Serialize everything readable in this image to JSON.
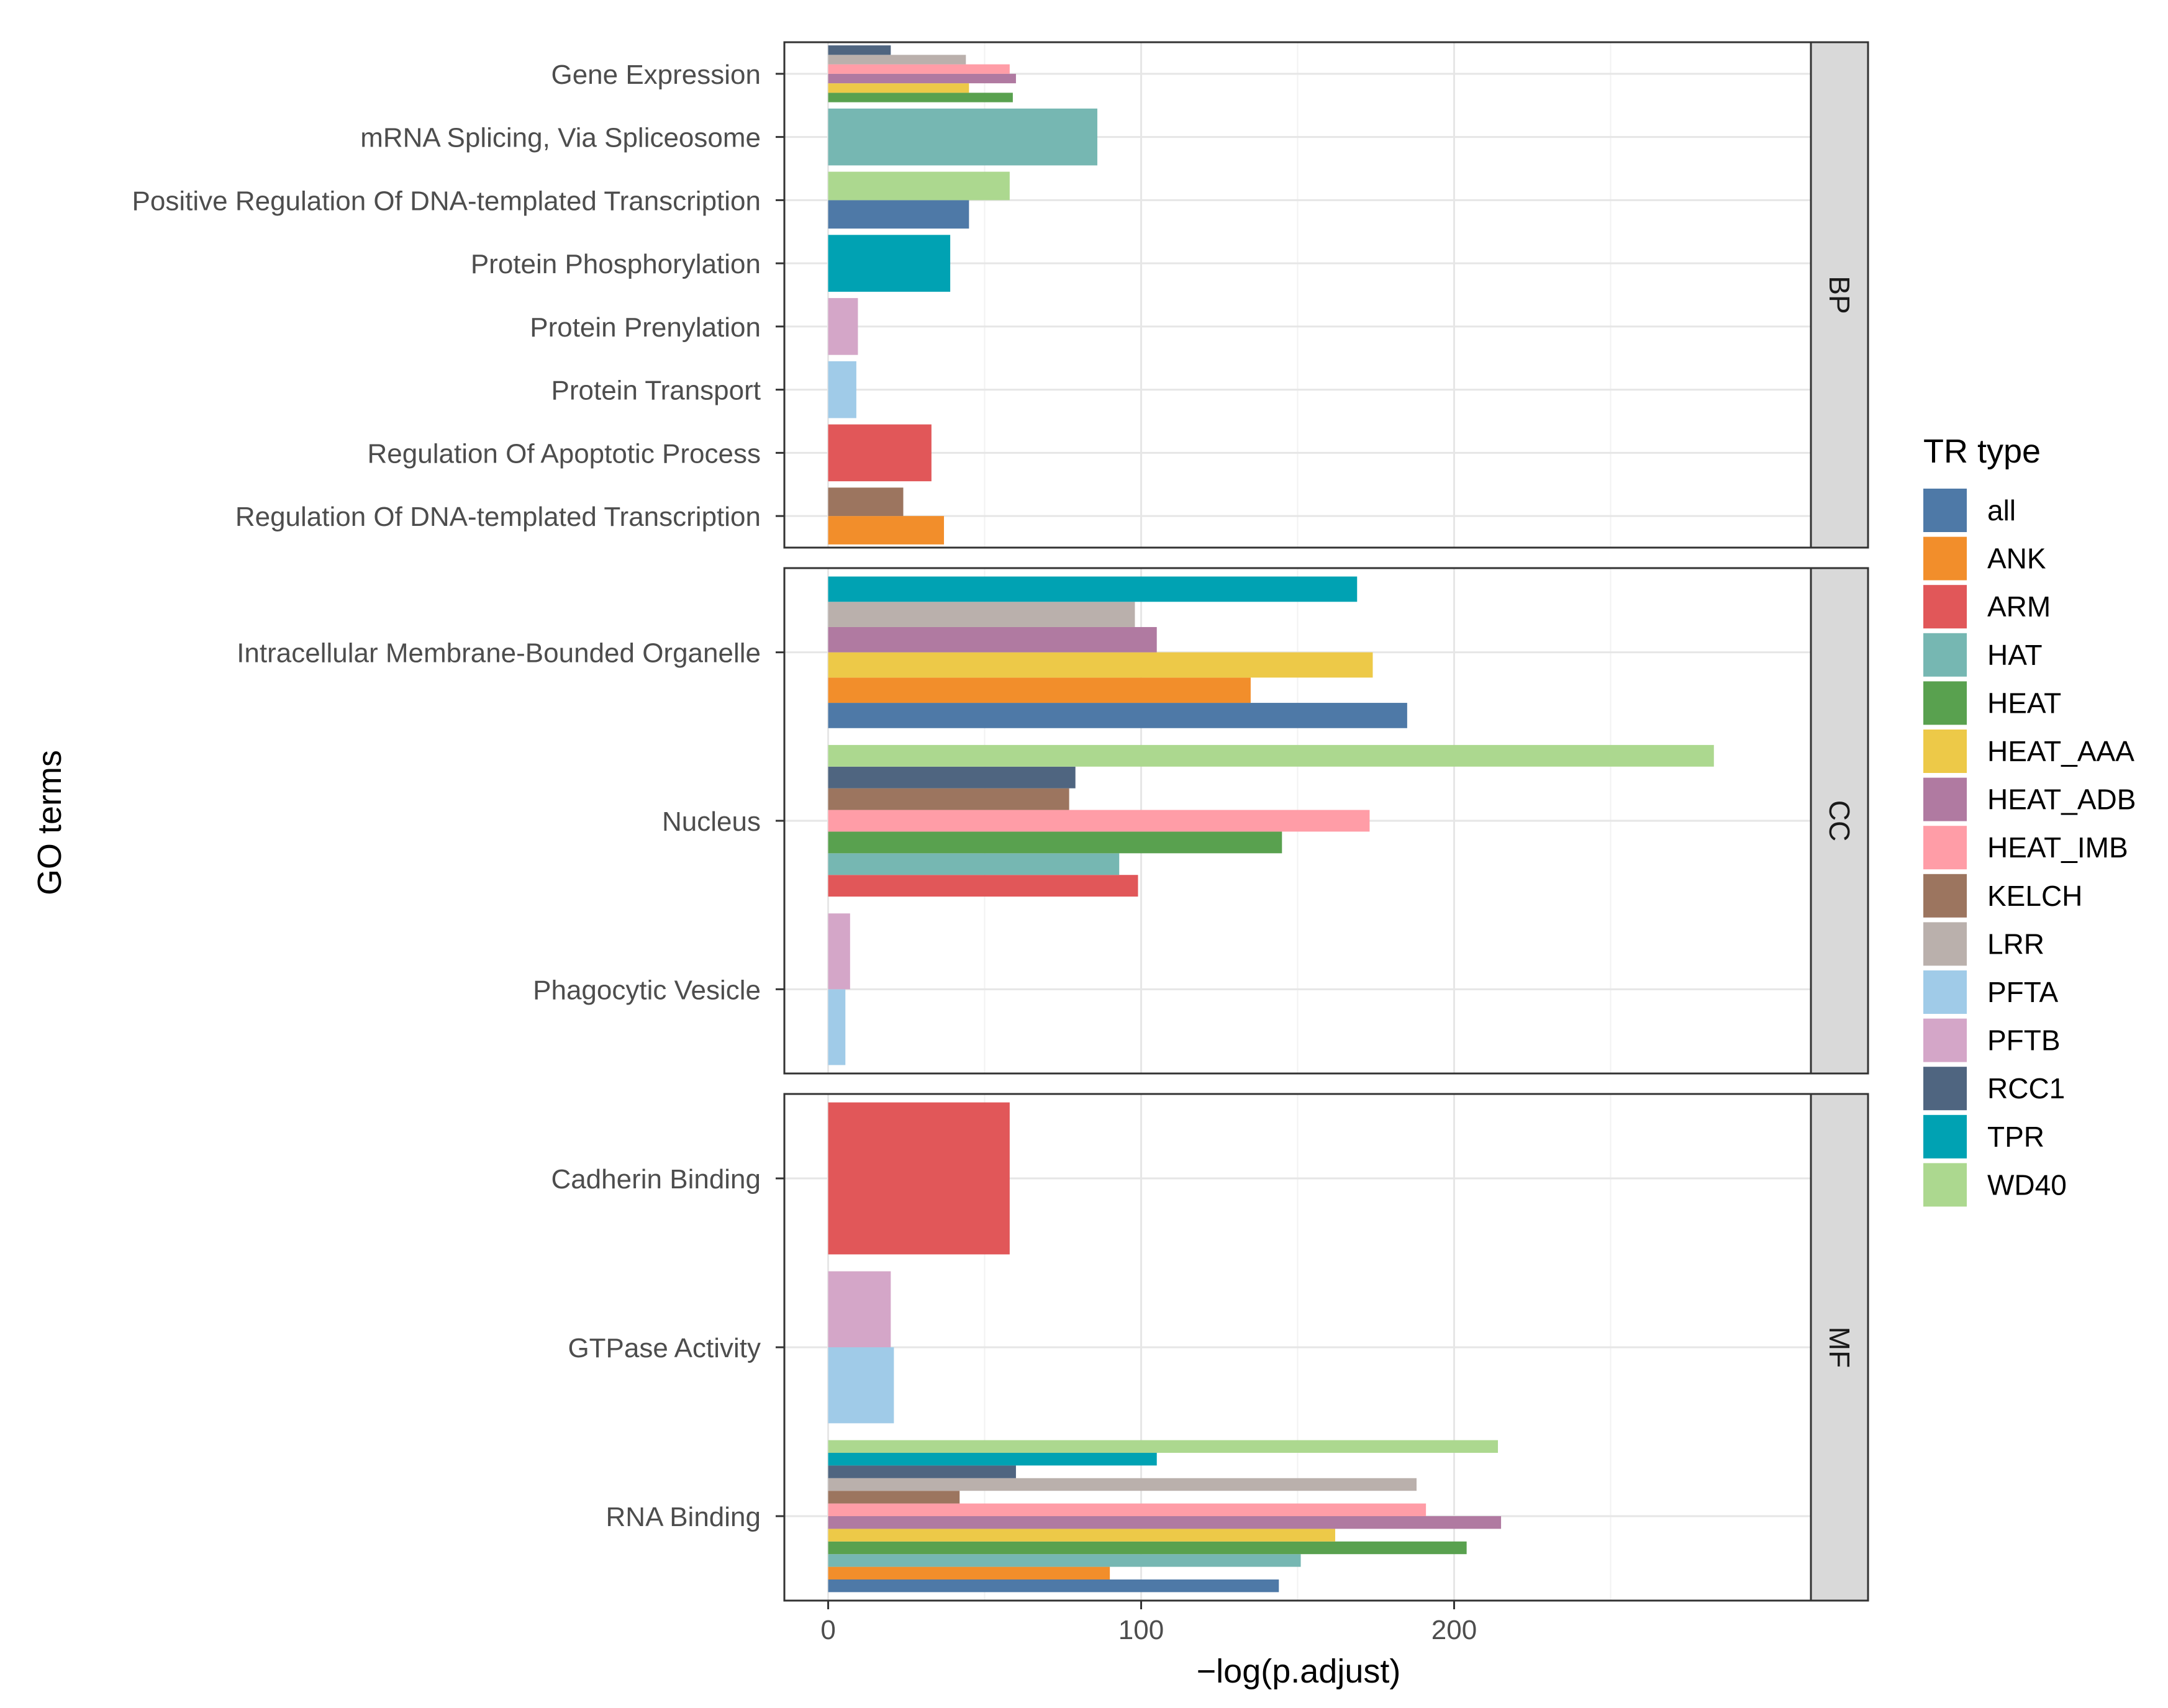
{
  "chart_data": {
    "type": "bar",
    "orientation": "horizontal",
    "facet_layout": "rows",
    "xlabel": "−log(p.adjust)",
    "ylabel": "GO terms",
    "xlim": [
      -14,
      314
    ],
    "xticks": [
      0,
      100,
      200
    ],
    "grid": true,
    "legend": {
      "title": "TR type",
      "placement": "right",
      "entries": [
        {
          "name": "all",
          "color": "#4e79a7"
        },
        {
          "name": "ANK",
          "color": "#f28e2b"
        },
        {
          "name": "ARM",
          "color": "#e15759"
        },
        {
          "name": "HAT",
          "color": "#76b7b2"
        },
        {
          "name": "HEAT",
          "color": "#59a14f"
        },
        {
          "name": "HEAT_AAA",
          "color": "#edc948"
        },
        {
          "name": "HEAT_ADB",
          "color": "#b07aa1"
        },
        {
          "name": "HEAT_IMB",
          "color": "#ff9da7"
        },
        {
          "name": "KELCH",
          "color": "#9c755f"
        },
        {
          "name": "LRR",
          "color": "#bab0ac"
        },
        {
          "name": "PFTA",
          "color": "#a0cbe8"
        },
        {
          "name": "PFTB",
          "color": "#d4a6c8"
        },
        {
          "name": "RCC1",
          "color": "#4f6580"
        },
        {
          "name": "TPR",
          "color": "#00a2b3"
        },
        {
          "name": "WD40",
          "color": "#acd88f"
        }
      ]
    },
    "facets": [
      {
        "label": "BP",
        "terms": [
          {
            "term": "Regulation Of DNA-templated Transcription",
            "bars": [
              {
                "type": "ANK",
                "value": 37
              },
              {
                "type": "KELCH",
                "value": 24
              }
            ]
          },
          {
            "term": "Regulation Of Apoptotic Process",
            "bars": [
              {
                "type": "ARM",
                "value": 33
              }
            ]
          },
          {
            "term": "Protein Transport",
            "bars": [
              {
                "type": "PFTA",
                "value": 9
              }
            ]
          },
          {
            "term": "Protein Prenylation",
            "bars": [
              {
                "type": "PFTB",
                "value": 9.5
              }
            ]
          },
          {
            "term": "Protein Phosphorylation",
            "bars": [
              {
                "type": "TPR",
                "value": 39
              }
            ]
          },
          {
            "term": "Positive Regulation Of DNA-templated Transcription",
            "bars": [
              {
                "type": "all",
                "value": 45
              },
              {
                "type": "WD40",
                "value": 58
              }
            ]
          },
          {
            "term": "mRNA Splicing, Via Spliceosome",
            "bars": [
              {
                "type": "HAT",
                "value": 86
              }
            ]
          },
          {
            "term": "Gene Expression",
            "bars": [
              {
                "type": "HEAT",
                "value": 59
              },
              {
                "type": "HEAT_AAA",
                "value": 45
              },
              {
                "type": "HEAT_ADB",
                "value": 60
              },
              {
                "type": "HEAT_IMB",
                "value": 58
              },
              {
                "type": "LRR",
                "value": 44
              },
              {
                "type": "RCC1",
                "value": 20
              }
            ]
          }
        ]
      },
      {
        "label": "CC",
        "terms": [
          {
            "term": "Phagocytic Vesicle",
            "bars": [
              {
                "type": "PFTA",
                "value": 5.5
              },
              {
                "type": "PFTB",
                "value": 7
              }
            ]
          },
          {
            "term": "Nucleus",
            "bars": [
              {
                "type": "ARM",
                "value": 99
              },
              {
                "type": "HAT",
                "value": 93
              },
              {
                "type": "HEAT",
                "value": 145
              },
              {
                "type": "HEAT_IMB",
                "value": 173
              },
              {
                "type": "KELCH",
                "value": 77
              },
              {
                "type": "RCC1",
                "value": 79
              },
              {
                "type": "WD40",
                "value": 283
              }
            ]
          },
          {
            "term": "Intracellular Membrane-Bounded Organelle",
            "bars": [
              {
                "type": "all",
                "value": 185
              },
              {
                "type": "ANK",
                "value": 135
              },
              {
                "type": "HEAT_AAA",
                "value": 174
              },
              {
                "type": "HEAT_ADB",
                "value": 105
              },
              {
                "type": "LRR",
                "value": 98
              },
              {
                "type": "TPR",
                "value": 169
              }
            ]
          }
        ]
      },
      {
        "label": "MF",
        "terms": [
          {
            "term": "RNA Binding",
            "bars": [
              {
                "type": "all",
                "value": 144
              },
              {
                "type": "ANK",
                "value": 90
              },
              {
                "type": "HAT",
                "value": 151
              },
              {
                "type": "HEAT",
                "value": 204
              },
              {
                "type": "HEAT_AAA",
                "value": 162
              },
              {
                "type": "HEAT_ADB",
                "value": 215
              },
              {
                "type": "HEAT_IMB",
                "value": 191
              },
              {
                "type": "KELCH",
                "value": 42
              },
              {
                "type": "LRR",
                "value": 188
              },
              {
                "type": "RCC1",
                "value": 60
              },
              {
                "type": "TPR",
                "value": 105
              },
              {
                "type": "WD40",
                "value": 214
              }
            ]
          },
          {
            "term": "GTPase Activity",
            "bars": [
              {
                "type": "PFTA",
                "value": 21
              },
              {
                "type": "PFTB",
                "value": 20
              }
            ]
          },
          {
            "term": "Cadherin Binding",
            "bars": [
              {
                "type": "ARM",
                "value": 58
              }
            ]
          }
        ]
      }
    ]
  }
}
